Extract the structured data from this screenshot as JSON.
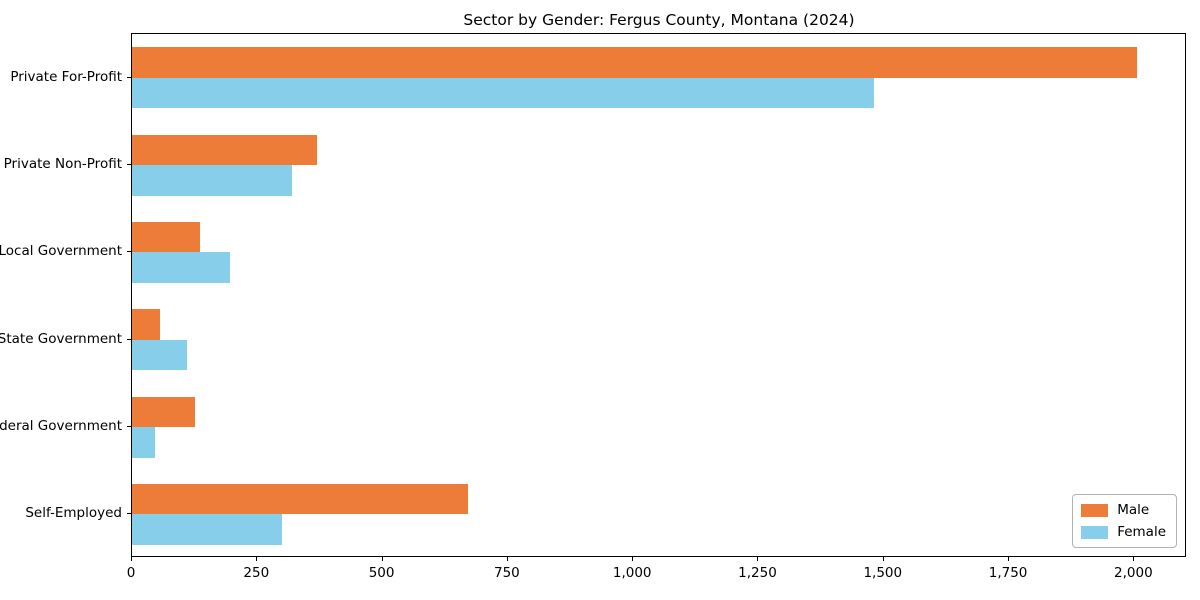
{
  "title": "Sector by Gender: Fergus County, Montana (2024)",
  "chart_data": {
    "type": "bar",
    "orientation": "horizontal",
    "title": "Sector by Gender: Fergus County, Montana (2024)",
    "categories": [
      "Private For-Profit",
      "Private Non-Profit",
      "Local Government",
      "State Government",
      "Federal Government",
      "Self-Employed"
    ],
    "series": [
      {
        "name": "Male",
        "color": "#ee7c39",
        "values": [
          2005,
          370,
          135,
          55,
          125,
          670
        ]
      },
      {
        "name": "Female",
        "color": "#87ceeb",
        "values": [
          1480,
          320,
          195,
          110,
          45,
          300
        ]
      }
    ],
    "xlabel": "",
    "ylabel": "",
    "xlim": [
      0,
      2105
    ],
    "xticks": [
      0,
      250,
      500,
      750,
      1000,
      1250,
      1500,
      1750,
      2000
    ],
    "xtick_labels": [
      "0",
      "250",
      "500",
      "750",
      "1,000",
      "1,250",
      "1,500",
      "1,750",
      "2,000"
    ],
    "grid": false,
    "legend_position": "lower right",
    "plot_border_color": "#000000",
    "background_color": "#ffffff"
  }
}
